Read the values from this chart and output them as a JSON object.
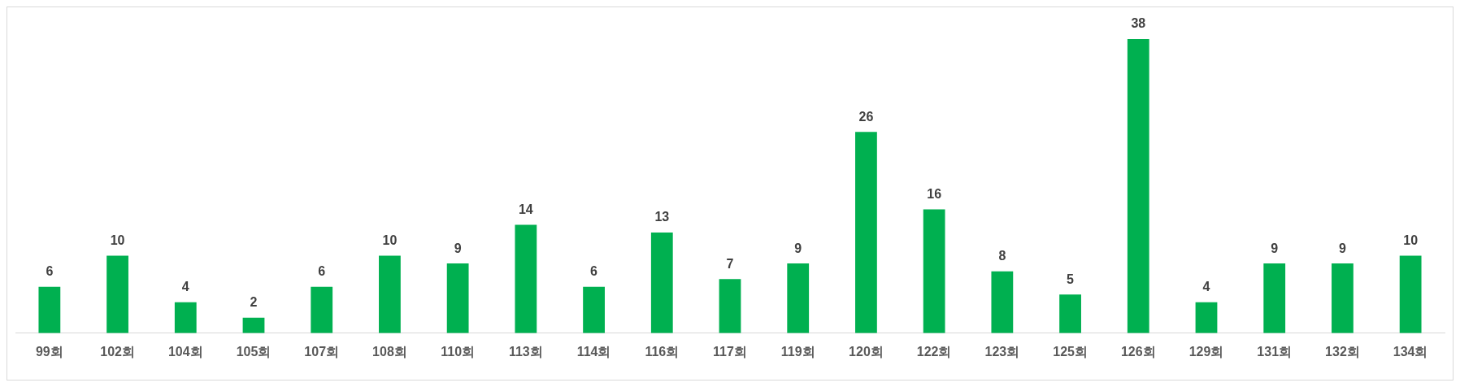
{
  "chart_data": {
    "type": "bar",
    "categories": [
      "99회",
      "102회",
      "104회",
      "105회",
      "107회",
      "108회",
      "110회",
      "113회",
      "114회",
      "116회",
      "117회",
      "119회",
      "120회",
      "122회",
      "123회",
      "125회",
      "126회",
      "129회",
      "131회",
      "132회",
      "134회"
    ],
    "values": [
      6,
      10,
      4,
      2,
      6,
      10,
      9,
      14,
      6,
      13,
      7,
      9,
      26,
      16,
      8,
      5,
      38,
      4,
      9,
      9,
      10
    ],
    "color": "#00b050",
    "data_labels": true,
    "grid": false,
    "legend": false
  }
}
